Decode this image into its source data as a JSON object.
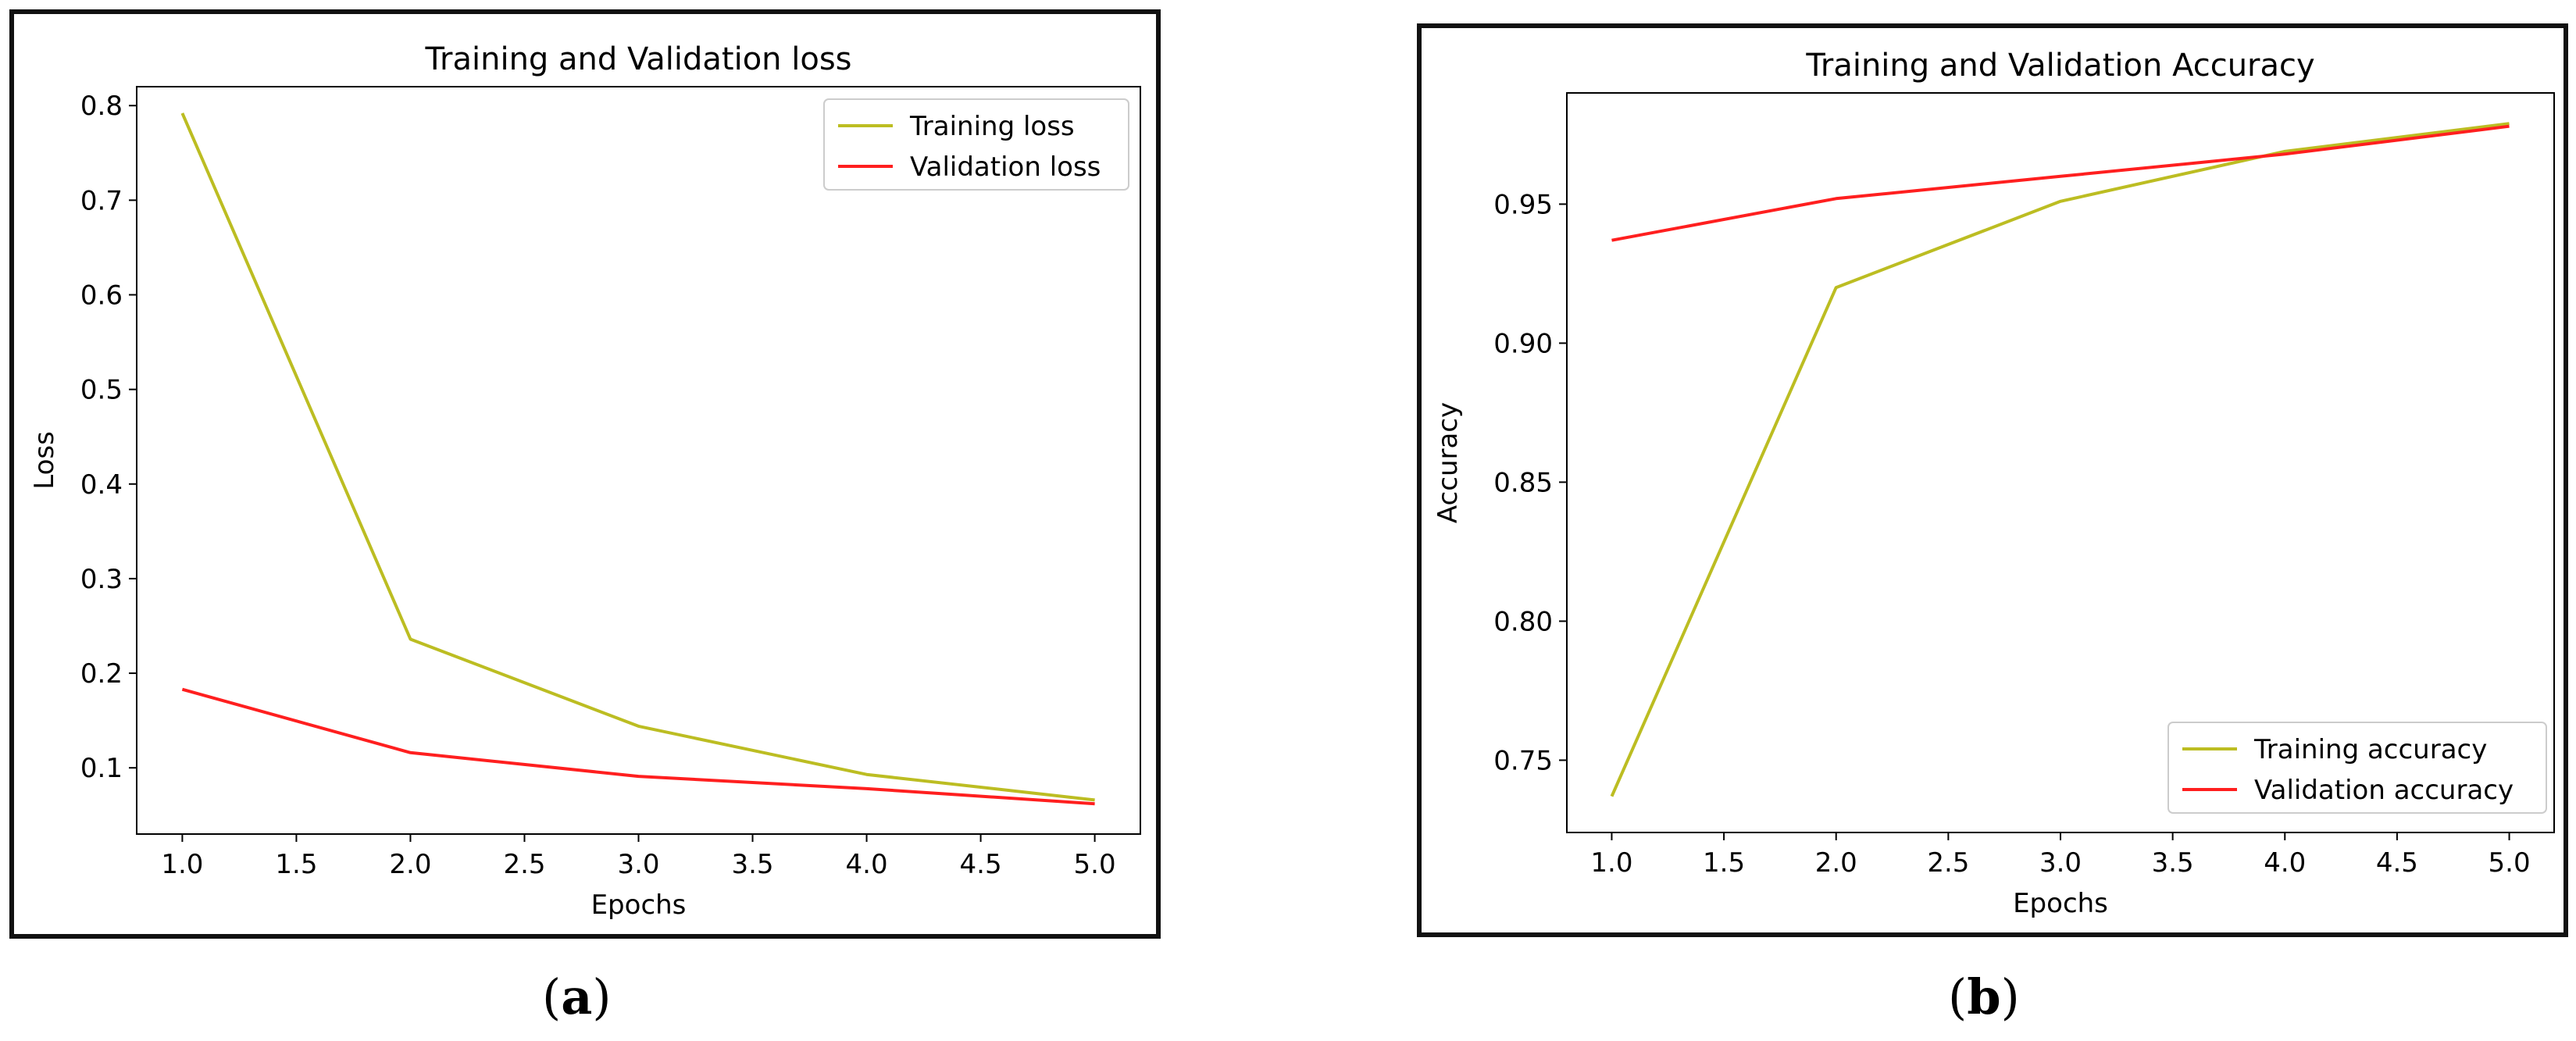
{
  "colors": {
    "training": "#bcbd22",
    "validation": "#ff1f1f",
    "axis": "#000000"
  },
  "chart_data": [
    {
      "type": "line",
      "title": "Training and Validation loss",
      "xlabel": "Epochs",
      "ylabel": "Loss",
      "xlim": [
        0.8,
        5.2
      ],
      "ylim": [
        0.03,
        0.82
      ],
      "xticks": [
        "1.0",
        "1.5",
        "2.0",
        "2.5",
        "3.0",
        "3.5",
        "4.0",
        "4.5",
        "5.0"
      ],
      "yticks": [
        "0.1",
        "0.2",
        "0.3",
        "0.4",
        "0.5",
        "0.6",
        "0.7",
        "0.8"
      ],
      "x": [
        1,
        2,
        3,
        4,
        5
      ],
      "series": [
        {
          "name": "Training loss",
          "color": "#bcbd22",
          "values": [
            0.792,
            0.236,
            0.144,
            0.093,
            0.066
          ]
        },
        {
          "name": "Validation loss",
          "color": "#ff1f1f",
          "values": [
            0.183,
            0.116,
            0.091,
            0.078,
            0.062
          ]
        }
      ],
      "legend": "top-right"
    },
    {
      "type": "line",
      "title": "Training and Validation Accuracy",
      "xlabel": "Epochs",
      "ylabel": "Accuracy",
      "xlim": [
        0.8,
        5.2
      ],
      "ylim": [
        0.724,
        0.99
      ],
      "xticks": [
        "1.0",
        "1.5",
        "2.0",
        "2.5",
        "3.0",
        "3.5",
        "4.0",
        "4.5",
        "5.0"
      ],
      "yticks": [
        "0.75",
        "0.80",
        "0.85",
        "0.90",
        "0.95"
      ],
      "x": [
        1,
        2,
        3,
        4,
        5
      ],
      "series": [
        {
          "name": "Training accuracy",
          "color": "#bcbd22",
          "values": [
            0.737,
            0.92,
            0.951,
            0.969,
            0.979
          ]
        },
        {
          "name": "Validation accuracy",
          "color": "#ff1f1f",
          "values": [
            0.937,
            0.952,
            0.96,
            0.968,
            0.978
          ]
        }
      ],
      "legend": "bottom-right"
    }
  ],
  "captions": {
    "a": "a",
    "b": "b"
  }
}
